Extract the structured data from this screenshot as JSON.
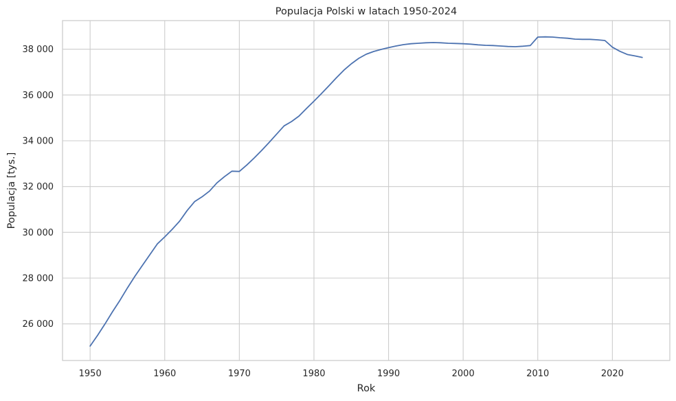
{
  "chart_data": {
    "type": "line",
    "title": "Populacja Polski w latach 1950-2024",
    "xlabel": "Rok",
    "ylabel": "Populacja [tys.]",
    "xlim": [
      1946.3,
      2027.7
    ],
    "ylim": [
      24400,
      39250
    ],
    "grid": true,
    "legend": "none",
    "x_ticks": [
      1950,
      1960,
      1970,
      1980,
      1990,
      2000,
      2010,
      2020
    ],
    "x_tick_labels": [
      "1950",
      "1960",
      "1970",
      "1980",
      "1990",
      "2000",
      "2010",
      "2020"
    ],
    "y_ticks": [
      26000,
      28000,
      30000,
      32000,
      34000,
      36000,
      38000
    ],
    "y_tick_labels": [
      "26 000",
      "28 000",
      "30 000",
      "32 000",
      "34 000",
      "36 000",
      "38 000"
    ],
    "series": [
      {
        "color": "#4c72b0",
        "x": [
          1950,
          1951,
          1952,
          1953,
          1954,
          1955,
          1956,
          1957,
          1958,
          1959,
          1960,
          1961,
          1962,
          1963,
          1964,
          1965,
          1966,
          1967,
          1968,
          1969,
          1970,
          1971,
          1972,
          1973,
          1974,
          1975,
          1976,
          1977,
          1978,
          1979,
          1980,
          1981,
          1982,
          1983,
          1984,
          1985,
          1986,
          1987,
          1988,
          1989,
          1990,
          1991,
          1992,
          1993,
          1994,
          1995,
          1996,
          1997,
          1998,
          1999,
          2000,
          2001,
          2002,
          2003,
          2004,
          2005,
          2006,
          2007,
          2008,
          2009,
          2010,
          2011,
          2012,
          2013,
          2014,
          2015,
          2016,
          2017,
          2018,
          2019,
          2020,
          2021,
          2022,
          2023,
          2024
        ],
        "y": [
          25030,
          25500,
          26000,
          26530,
          27030,
          27570,
          28080,
          28550,
          29020,
          29490,
          29800,
          30130,
          30490,
          30950,
          31340,
          31550,
          31800,
          32160,
          32430,
          32670,
          32660,
          32940,
          33250,
          33580,
          33930,
          34290,
          34650,
          34840,
          35080,
          35410,
          35730,
          36060,
          36400,
          36750,
          37080,
          37360,
          37600,
          37780,
          37900,
          37990,
          38070,
          38140,
          38200,
          38240,
          38260,
          38280,
          38290,
          38280,
          38260,
          38250,
          38240,
          38220,
          38190,
          38170,
          38160,
          38140,
          38120,
          38110,
          38130,
          38160,
          38530,
          38540,
          38530,
          38500,
          38480,
          38440,
          38430,
          38430,
          38410,
          38380,
          38090,
          37910,
          37770,
          37710,
          37640
        ]
      }
    ]
  }
}
